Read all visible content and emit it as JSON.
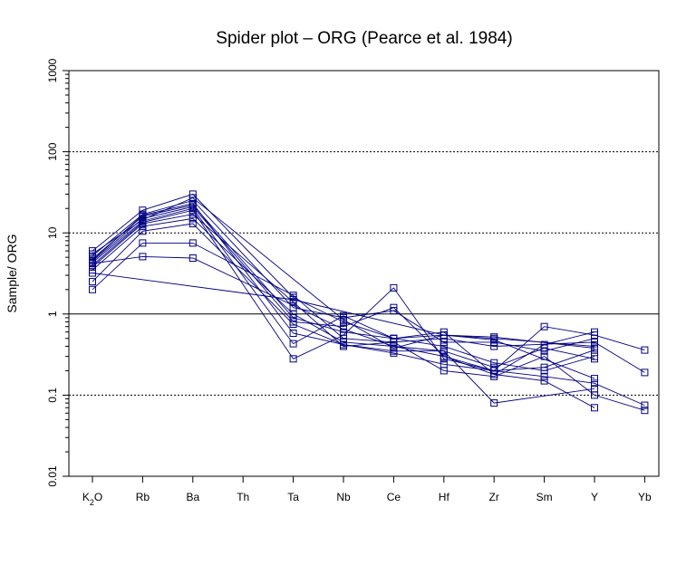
{
  "chart_data": {
    "type": "line",
    "title": "Spider plot – ORG (Pearce et al. 1984)",
    "xlabel": "",
    "ylabel": "Sample/ ORG",
    "yscale": "log",
    "ylim": [
      0.01,
      1000
    ],
    "y_ticks": [
      "0.01",
      "0.1",
      "1",
      "10",
      "100",
      "1000"
    ],
    "gridlines_dotted": [
      0.1,
      10,
      100
    ],
    "reference_line": 1,
    "categories": [
      "K2O",
      "Rb",
      "Ba",
      "Th",
      "Ta",
      "Nb",
      "Ce",
      "Hf",
      "Zr",
      "Sm",
      "Y",
      "Yb"
    ],
    "category_labels": [
      {
        "base": "K",
        "sub": "2",
        "tail": "O"
      },
      {
        "base": "Rb"
      },
      {
        "base": "Ba"
      },
      {
        "base": "Th"
      },
      {
        "base": "Ta"
      },
      {
        "base": "Nb"
      },
      {
        "base": "Ce"
      },
      {
        "base": "Hf"
      },
      {
        "base": "Zr"
      },
      {
        "base": "Sm"
      },
      {
        "base": "Y"
      },
      {
        "base": "Yb"
      }
    ],
    "marker": "open-square",
    "series_color": "#000080",
    "series": [
      {
        "values": [
          6.0,
          19.0,
          30.0,
          null,
          1.6,
          0.8,
          0.5,
          0.55,
          0.5,
          null,
          0.4,
          null
        ]
      },
      {
        "values": [
          5.2,
          17.0,
          25.0,
          null,
          1.2,
          0.9,
          1.1,
          0.45,
          0.45,
          0.35,
          0.5,
          null
        ]
      },
      {
        "values": [
          4.8,
          16.0,
          22.0,
          null,
          0.9,
          0.6,
          0.5,
          0.4,
          0.25,
          0.2,
          0.3,
          null
        ]
      },
      {
        "values": [
          4.5,
          15.0,
          21.0,
          null,
          0.8,
          0.7,
          1.2,
          0.3,
          0.2,
          0.7,
          0.55,
          0.36
        ]
      },
      {
        "values": [
          4.3,
          14.0,
          20.0,
          null,
          0.43,
          0.95,
          0.5,
          0.6,
          0.18,
          0.42,
          0.6,
          null
        ]
      },
      {
        "values": [
          4.0,
          13.5,
          19.0,
          null,
          0.28,
          0.55,
          2.1,
          0.28,
          0.2,
          0.17,
          0.14,
          0.075
        ]
      },
      {
        "values": [
          3.8,
          13.0,
          17.0,
          null,
          1.4,
          0.4,
          0.45,
          0.2,
          0.17,
          0.3,
          0.1,
          0.065
        ]
      },
      {
        "values": [
          3.5,
          12.0,
          15.0,
          null,
          1.0,
          0.45,
          0.4,
          0.3,
          0.18,
          0.15,
          0.07,
          null
        ]
      },
      {
        "values": [
          2.5,
          10.5,
          13.0,
          null,
          0.75,
          0.42,
          0.35,
          0.35,
          0.08,
          null,
          0.12,
          null
        ]
      },
      {
        "values": [
          2.0,
          7.5,
          7.5,
          null,
          1.7,
          0.5,
          0.45,
          0.5,
          0.4,
          null,
          0.45,
          0.19
        ]
      },
      {
        "values": [
          4.2,
          5.1,
          4.9,
          null,
          null,
          0.65,
          0.4,
          0.35,
          0.22,
          0.38,
          0.28,
          null
        ]
      },
      {
        "values": [
          3.2,
          null,
          null,
          null,
          1.5,
          null,
          null,
          0.55,
          0.52,
          null,
          0.38,
          null
        ]
      },
      {
        "values": [
          5.5,
          14.5,
          27.0,
          null,
          null,
          0.85,
          0.38,
          0.55,
          0.48,
          null,
          0.16,
          null
        ]
      },
      {
        "values": [
          4.6,
          16.5,
          23.0,
          null,
          0.58,
          0.42,
          0.33,
          0.24,
          0.2,
          0.22,
          0.36,
          null
        ]
      }
    ]
  }
}
